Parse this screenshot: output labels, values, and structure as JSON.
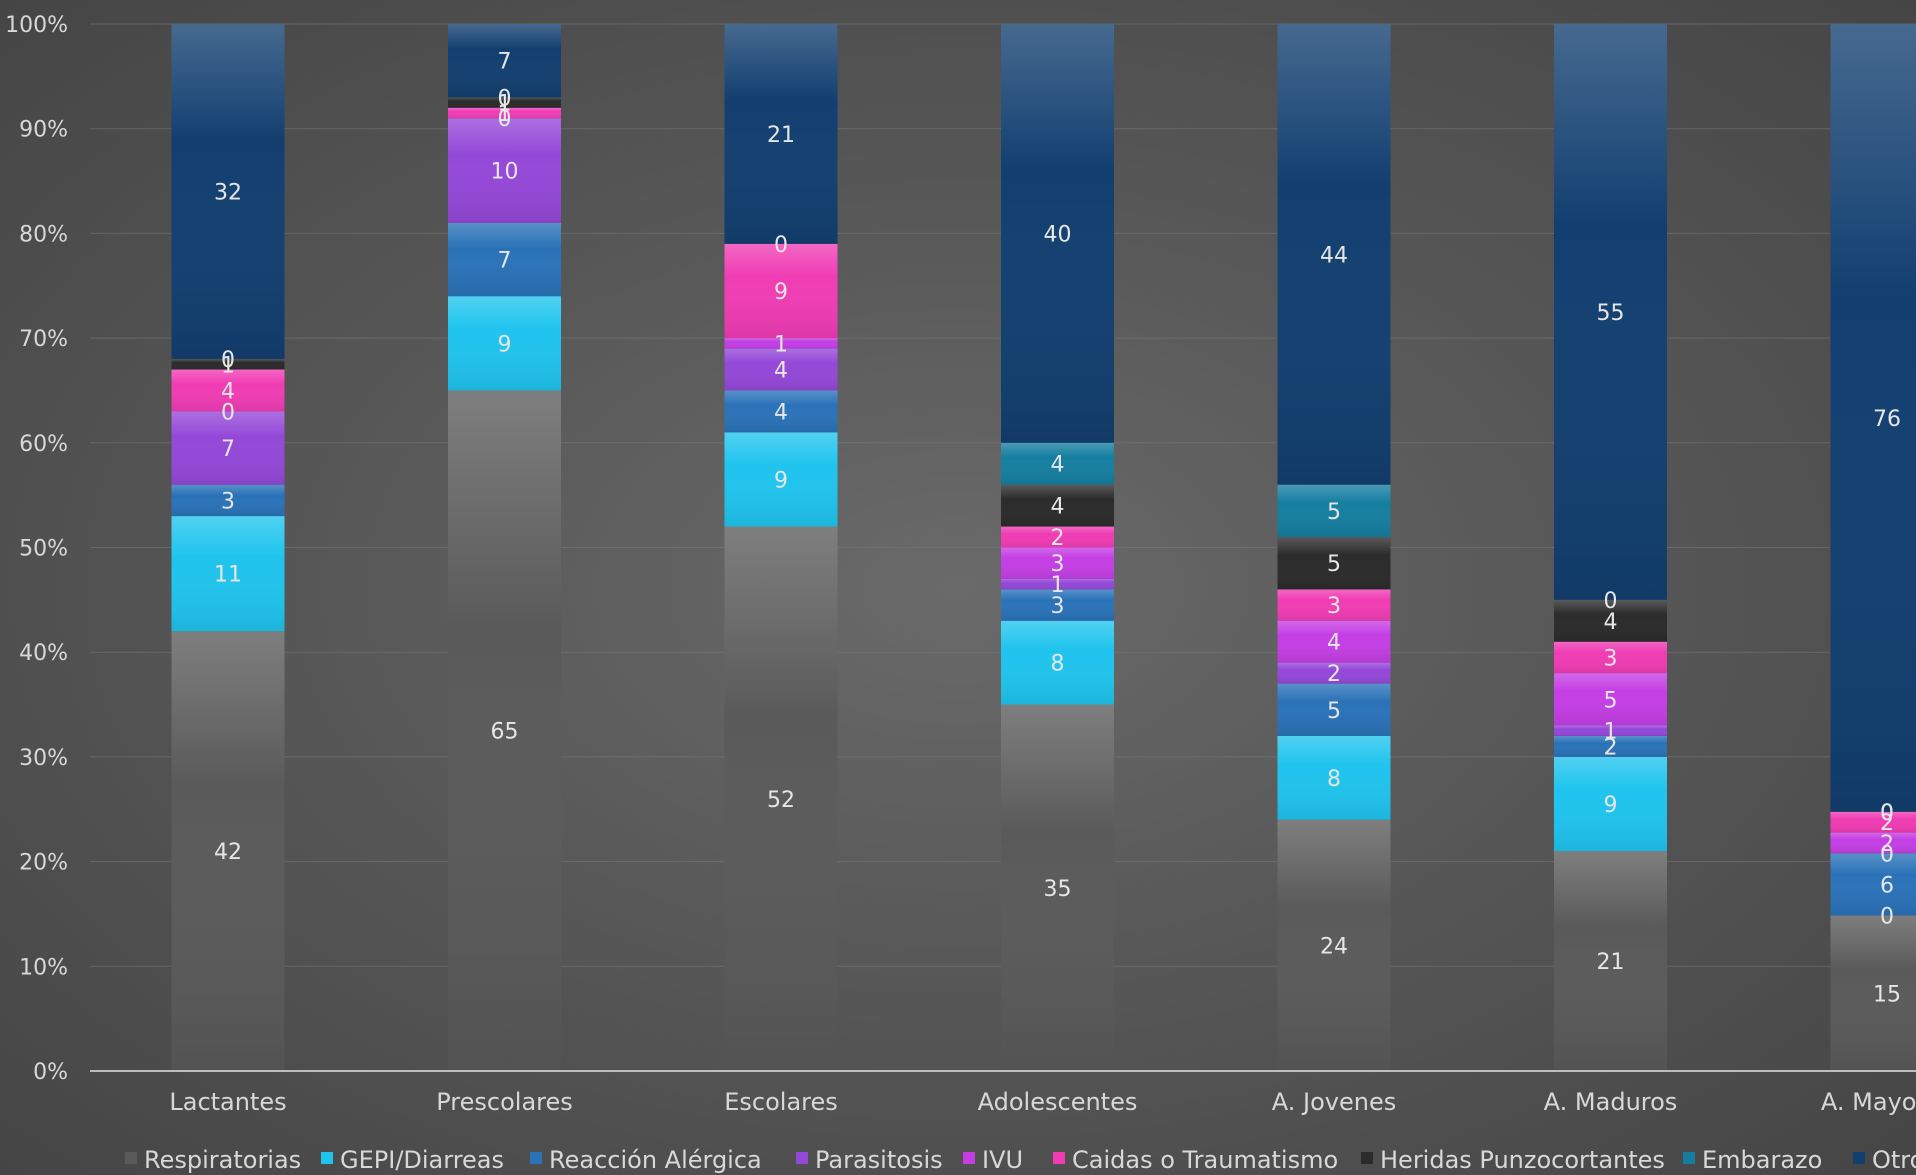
{
  "chart_data": {
    "type": "bar",
    "stacked": "percent",
    "categories": [
      "Lactantes",
      "Prescolares",
      "Escolares",
      "Adolescentes",
      "A. Jovenes",
      "A. Maduros",
      "A. Mayores"
    ],
    "series": [
      {
        "name": "Respiratorias",
        "color": "#5a5a5a",
        "values": [
          42,
          65,
          52,
          35,
          24,
          21,
          15
        ]
      },
      {
        "name": "GEPI/Diarreas",
        "color": "#1fc4ee",
        "values": [
          11,
          9,
          9,
          8,
          8,
          9,
          0
        ]
      },
      {
        "name": "Reacción Alérgica",
        "color": "#2a72b8",
        "values": [
          3,
          7,
          4,
          3,
          5,
          2,
          6
        ]
      },
      {
        "name": "Parasitosis",
        "color": "#9448d8",
        "values": [
          7,
          10,
          4,
          1,
          2,
          1,
          0
        ]
      },
      {
        "name": "IVU",
        "color": "#c43ee4",
        "values": [
          0,
          0,
          1,
          3,
          4,
          5,
          2
        ]
      },
      {
        "name": "Caidas o Traumatismo",
        "color": "#f03cb4",
        "values": [
          4,
          1,
          9,
          2,
          3,
          3,
          2
        ]
      },
      {
        "name": "Heridas Punzocortantes",
        "color": "#2b2b2b",
        "values": [
          1,
          1,
          0,
          4,
          5,
          4,
          0
        ]
      },
      {
        "name": "Embarazo",
        "color": "#157ea0",
        "values": [
          0,
          0,
          0,
          4,
          5,
          0,
          0
        ]
      },
      {
        "name": "Otros",
        "color": "#123f70",
        "values": [
          32,
          7,
          21,
          40,
          44,
          55,
          76
        ]
      }
    ],
    "labels": [
      [
        [
          "42",
          42
        ],
        [
          "11",
          11
        ],
        [
          "3",
          3
        ],
        [
          "7",
          7
        ],
        [
          "0",
          0
        ],
        [
          "4",
          4
        ],
        [
          "1",
          1
        ],
        [
          "0",
          0
        ],
        [
          "32",
          32
        ]
      ],
      [
        [
          "65",
          65
        ],
        [
          "9",
          9
        ],
        [
          "7",
          7
        ],
        [
          "10",
          10
        ],
        [
          "0",
          0
        ],
        [
          "1",
          1
        ],
        [
          "1",
          1
        ],
        [
          "0",
          0
        ],
        [
          "7",
          7
        ]
      ],
      [
        [
          "52",
          52
        ],
        [
          "9",
          9
        ],
        [
          "4",
          4
        ],
        [
          "4",
          4
        ],
        [
          "1",
          1
        ],
        [
          "9",
          9
        ],
        [
          "0",
          0
        ],
        [
          "",
          0
        ],
        [
          "21",
          21
        ]
      ],
      [
        [
          "35",
          35
        ],
        [
          "8",
          8
        ],
        [
          "3",
          3
        ],
        [
          "1",
          1
        ],
        [
          "3",
          3
        ],
        [
          "2",
          2
        ],
        [
          "4",
          4
        ],
        [
          "4",
          4
        ],
        [
          "40",
          40
        ]
      ],
      [
        [
          "24",
          24
        ],
        [
          "8",
          8
        ],
        [
          "5",
          5
        ],
        [
          "2",
          2
        ],
        [
          "4",
          4
        ],
        [
          "3",
          3
        ],
        [
          "5",
          5
        ],
        [
          "5",
          5
        ],
        [
          "44",
          44
        ]
      ],
      [
        [
          "21",
          21
        ],
        [
          "9",
          9
        ],
        [
          "2",
          2
        ],
        [
          "1",
          1
        ],
        [
          "5",
          5
        ],
        [
          "3",
          3
        ],
        [
          "4",
          4
        ],
        [
          "0",
          0
        ],
        [
          "55",
          55
        ]
      ],
      [
        [
          "15",
          15
        ],
        [
          "0",
          0
        ],
        [
          "6",
          6
        ],
        [
          "0",
          0
        ],
        [
          "2",
          2
        ],
        [
          "2",
          2
        ],
        [
          "0",
          0
        ],
        [
          "0",
          0
        ],
        [
          "76",
          76
        ]
      ]
    ],
    "y_tick_labels": [
      "0%",
      "10%",
      "20%",
      "30%",
      "40%",
      "50%",
      "60%",
      "70%",
      "80%",
      "90%",
      "100%"
    ],
    "ylim": [
      0,
      100
    ],
    "grid": true,
    "legend_position": "bottom"
  }
}
